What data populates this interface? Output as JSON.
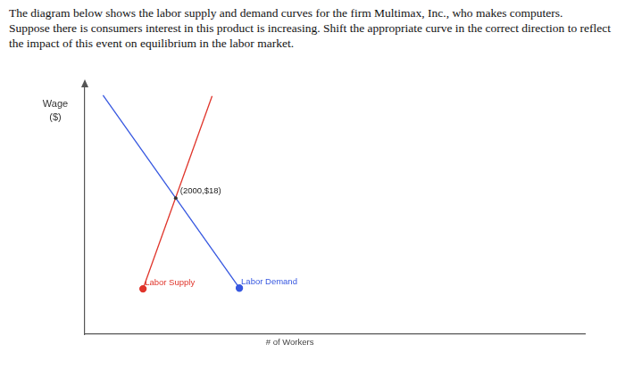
{
  "question": [
    "The diagram below shows the labor supply and demand curves for the firm Multimax, Inc., who makes computers.",
    "Suppose there is consumers interest in this product is increasing. Shift the appropriate curve in the correct direction to reflect the impact of this event on equilibrium in the labor market."
  ],
  "chart_data": {
    "type": "line",
    "x_label": "# of Workers",
    "y_label": "Wage ($)",
    "xlim": [
      0,
      11000
    ],
    "ylim": [
      0,
      33
    ],
    "grid": false,
    "tick_labels": false,
    "series": [
      {
        "name": "Labor Supply",
        "color": "#e0352b",
        "marker": "circle",
        "x": [
          1280,
          2800
        ],
        "values": [
          6,
          31.5
        ]
      },
      {
        "name": "Labor Demand",
        "color": "#3657e0",
        "marker": "circle",
        "x": [
          400,
          3400
        ],
        "values": [
          31.6,
          6.1
        ]
      }
    ],
    "annotations": [
      {
        "x": 2000,
        "y": 18,
        "text": "(2000,$18)"
      }
    ]
  }
}
